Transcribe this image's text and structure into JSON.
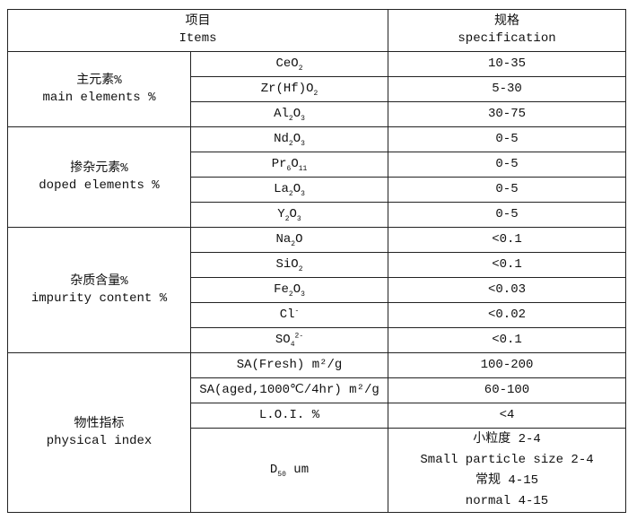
{
  "header": {
    "items_cn": "项目",
    "items_en": "Items",
    "spec_cn": "规格",
    "spec_en": "specification"
  },
  "groups": [
    {
      "cn": "主元素%",
      "en": "main elements %",
      "rows": [
        {
          "item": [
            {
              "t": "CeO"
            },
            {
              "sub": "2"
            }
          ],
          "spec": "10-35"
        },
        {
          "item": [
            {
              "t": "Zr(Hf)O"
            },
            {
              "sub": "2"
            }
          ],
          "spec": "5-30"
        },
        {
          "item": [
            {
              "t": "Al"
            },
            {
              "sub": "2"
            },
            {
              "t": "O"
            },
            {
              "sub": "3"
            }
          ],
          "spec": "30-75"
        }
      ]
    },
    {
      "cn": "掺杂元素%",
      "en": "doped elements %",
      "rows": [
        {
          "item": [
            {
              "t": "Nd"
            },
            {
              "sub": "2"
            },
            {
              "t": "O"
            },
            {
              "sub": "3"
            }
          ],
          "spec": "0-5"
        },
        {
          "item": [
            {
              "t": "Pr"
            },
            {
              "sub": "6"
            },
            {
              "t": "O"
            },
            {
              "sub": "11"
            }
          ],
          "spec": "0-5"
        },
        {
          "item": [
            {
              "t": "La"
            },
            {
              "sub": "2"
            },
            {
              "t": "O"
            },
            {
              "sub": "3"
            }
          ],
          "spec": "0-5"
        },
        {
          "item": [
            {
              "t": "Y"
            },
            {
              "sub": "2"
            },
            {
              "t": "O"
            },
            {
              "sub": "3"
            }
          ],
          "spec": "0-5"
        }
      ]
    },
    {
      "cn": "杂质含量%",
      "en": "impurity content %",
      "rows": [
        {
          "item": [
            {
              "t": "Na"
            },
            {
              "sub": "2"
            },
            {
              "t": "O"
            }
          ],
          "spec": "<0.1"
        },
        {
          "item": [
            {
              "t": "SiO"
            },
            {
              "sub": "2"
            }
          ],
          "spec": "<0.1"
        },
        {
          "item": [
            {
              "t": "Fe"
            },
            {
              "sub": "2"
            },
            {
              "t": "O"
            },
            {
              "sub": "3"
            }
          ],
          "spec": "<0.03"
        },
        {
          "item": [
            {
              "t": "Cl"
            },
            {
              "sup": "-"
            }
          ],
          "spec": "<0.02"
        },
        {
          "item": [
            {
              "t": "SO"
            },
            {
              "sub": "4"
            },
            {
              "sup": "2-"
            }
          ],
          "spec": "<0.1"
        }
      ]
    },
    {
      "cn": "物性指标",
      "en": "physical index",
      "rows": [
        {
          "item": [
            {
              "t": "SA(Fresh) m²/g"
            }
          ],
          "spec": "100-200"
        },
        {
          "item": [
            {
              "t": "SA(aged,1000℃/4hr) m²/g"
            }
          ],
          "spec": "60-100"
        },
        {
          "item": [
            {
              "t": "L.O.I. %"
            }
          ],
          "spec": "<4"
        },
        {
          "item": [
            {
              "t": "D"
            },
            {
              "sub": "50"
            },
            {
              "t": " um"
            }
          ],
          "spec_lines": [
            "小粒度 2-4",
            "Small particle size 2-4",
            "常规 4-15",
            "normal 4-15"
          ]
        }
      ]
    }
  ]
}
